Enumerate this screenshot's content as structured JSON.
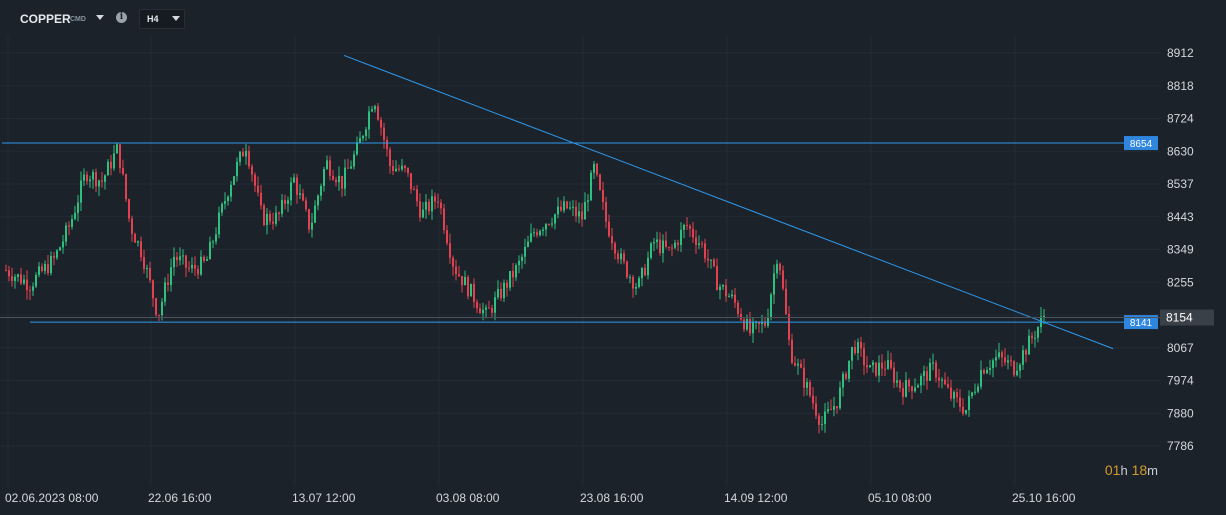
{
  "toolbar": {
    "symbol": "COPPER",
    "symbol_suffix": "CMD",
    "timeframe": "H4"
  },
  "timer": {
    "value1": "01",
    "unit1": "h",
    "value2": "18",
    "unit2": "m"
  },
  "chart_data": {
    "type": "candlestick",
    "ylim": [
      7740,
      8970
    ],
    "y_ticks": [
      "8912",
      "8818",
      "8724",
      "8630",
      "8537",
      "8443",
      "8349",
      "8255",
      "8154",
      "8067",
      "7974",
      "7880",
      "7786"
    ],
    "x_ticks": [
      "02.06.2023  08:00",
      "22.06  16:00",
      "13.07  12:00",
      "03.08  08:00",
      "23.08  16:00",
      "14.09  12:00",
      "05.10  08:00",
      "25.10  16:00"
    ],
    "current_price_label": "8154",
    "horizontal_levels": [
      {
        "label": "8654",
        "value": 8654
      },
      {
        "label": "8141",
        "value": 8141
      }
    ],
    "trendlines": [
      {
        "from": {
          "x": "02.06.2023 + 0.27",
          "price": 8905
        },
        "to": {
          "x": "25.10 + 0.06",
          "price": 8065
        }
      },
      {
        "from": {
          "x": "02.06.2023 + 0.0",
          "price": 8154
        },
        "to": {
          "x": "25.10",
          "price": 8154
        }
      }
    ],
    "price_path": [
      [
        0,
        8290
      ],
      [
        0.03,
        8250
      ],
      [
        0.06,
        8320
      ],
      [
        0.08,
        8420
      ],
      [
        0.1,
        8570
      ],
      [
        0.12,
        8545
      ],
      [
        0.14,
        8640
      ],
      [
        0.155,
        8420
      ],
      [
        0.17,
        8340
      ],
      [
        0.19,
        8160
      ],
      [
        0.21,
        8330
      ],
      [
        0.23,
        8290
      ],
      [
        0.25,
        8310
      ],
      [
        0.28,
        8540
      ],
      [
        0.3,
        8650
      ],
      [
        0.32,
        8440
      ],
      [
        0.34,
        8440
      ],
      [
        0.36,
        8550
      ],
      [
        0.38,
        8410
      ],
      [
        0.4,
        8600
      ],
      [
        0.42,
        8540
      ],
      [
        0.44,
        8640
      ],
      [
        0.46,
        8790
      ],
      [
        0.48,
        8590
      ],
      [
        0.5,
        8570
      ],
      [
        0.52,
        8450
      ],
      [
        0.54,
        8500
      ],
      [
        0.56,
        8300
      ],
      [
        0.58,
        8230
      ],
      [
        0.6,
        8160
      ],
      [
        0.62,
        8230
      ],
      [
        0.64,
        8300
      ],
      [
        0.66,
        8400
      ],
      [
        0.68,
        8440
      ],
      [
        0.7,
        8470
      ],
      [
        0.72,
        8440
      ],
      [
        0.735,
        8580
      ],
      [
        0.75,
        8430
      ],
      [
        0.77,
        8310
      ],
      [
        0.79,
        8240
      ],
      [
        0.81,
        8370
      ],
      [
        0.83,
        8340
      ],
      [
        0.85,
        8420
      ],
      [
        0.87,
        8360
      ],
      [
        0.89,
        8250
      ],
      [
        0.91,
        8200
      ],
      [
        0.93,
        8110
      ],
      [
        0.95,
        8140
      ],
      [
        0.965,
        8350
      ],
      [
        0.98,
        8060
      ],
      [
        1.0,
        7960
      ],
      [
        1.02,
        7850
      ],
      [
        1.04,
        7920
      ],
      [
        1.06,
        8080
      ],
      [
        1.08,
        8000
      ],
      [
        1.1,
        8020
      ],
      [
        1.12,
        7950
      ],
      [
        1.14,
        7970
      ],
      [
        1.16,
        8010
      ],
      [
        1.18,
        7930
      ],
      [
        1.2,
        7890
      ],
      [
        1.22,
        8010
      ],
      [
        1.24,
        8040
      ],
      [
        1.26,
        8010
      ],
      [
        1.28,
        8085
      ],
      [
        1.3,
        8170
      ]
    ]
  }
}
